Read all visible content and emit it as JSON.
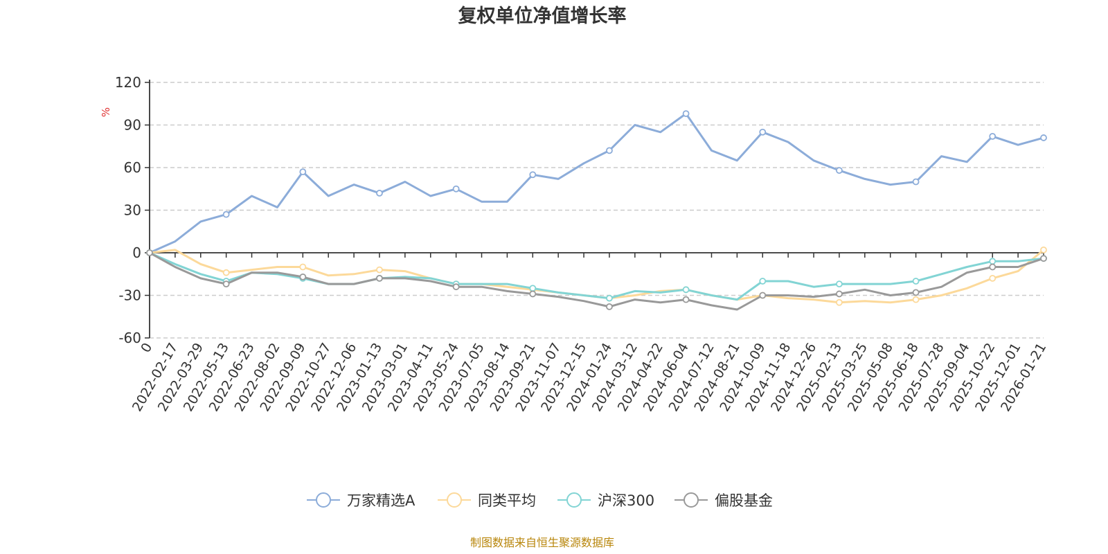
{
  "chart_data": {
    "type": "line",
    "title": "复权单位净值增长率",
    "ylabel": "%",
    "ylim": [
      -60,
      120
    ],
    "yticks": [
      120,
      90,
      60,
      30,
      0,
      -30,
      -60
    ],
    "yticks_labels": [
      "120",
      "90",
      "60",
      "30",
      "0",
      "-30",
      "-60"
    ],
    "grid": true,
    "legend_position": "bottom",
    "x_categories": [
      "0",
      "2022-02-17",
      "2022-03-29",
      "2022-05-13",
      "2022-06-23",
      "2022-08-02",
      "2022-09-09",
      "2022-10-27",
      "2022-12-06",
      "2023-01-13",
      "2023-03-01",
      "2023-04-11",
      "2023-05-24",
      "2023-07-05",
      "2023-08-14",
      "2023-09-21",
      "2023-11-07",
      "2023-12-15",
      "2024-01-24",
      "2024-03-12",
      "2024-04-22",
      "2024-06-04",
      "2024-07-12",
      "2024-08-21",
      "2024-10-09",
      "2024-11-18",
      "2024-12-26",
      "2025-02-13",
      "2025-03-25",
      "2025-05-08",
      "2025-06-18",
      "2025-07-28",
      "2025-09-04",
      "2025-10-22",
      "2025-12-01",
      "2026-01-21"
    ],
    "series": [
      {
        "name": "万家精选A",
        "color": "#8cacd9",
        "values": [
          0,
          8,
          22,
          27,
          40,
          32,
          57,
          40,
          48,
          42,
          50,
          40,
          45,
          36,
          36,
          55,
          52,
          63,
          72,
          90,
          85,
          98,
          72,
          65,
          85,
          78,
          65,
          58,
          52,
          48,
          50,
          68,
          64,
          82,
          76,
          81
        ]
      },
      {
        "name": "同类平均",
        "color": "#fcd99a",
        "values": [
          0,
          2,
          -8,
          -14,
          -12,
          -10,
          -10,
          -16,
          -15,
          -12,
          -13,
          -18,
          -22,
          -22,
          -24,
          -26,
          -28,
          -30,
          -32,
          -30,
          -27,
          -26,
          -30,
          -33,
          -30,
          -32,
          -33,
          -35,
          -34,
          -35,
          -33,
          -30,
          -25,
          -18,
          -13,
          2
        ]
      },
      {
        "name": "沪深300",
        "color": "#82d4d4",
        "values": [
          0,
          -8,
          -15,
          -20,
          -14,
          -15,
          -18,
          -22,
          -22,
          -18,
          -17,
          -18,
          -22,
          -22,
          -22,
          -25,
          -28,
          -30,
          -32,
          -27,
          -28,
          -26,
          -30,
          -33,
          -20,
          -20,
          -24,
          -22,
          -22,
          -22,
          -20,
          -15,
          -10,
          -6,
          -6,
          -4
        ]
      },
      {
        "name": "偏股基金",
        "color": "#999999",
        "values": [
          0,
          -10,
          -18,
          -22,
          -14,
          -14,
          -17,
          -22,
          -22,
          -18,
          -18,
          -20,
          -24,
          -24,
          -27,
          -29,
          -31,
          -34,
          -38,
          -33,
          -35,
          -33,
          -37,
          -40,
          -30,
          -30,
          -31,
          -29,
          -26,
          -30,
          -28,
          -24,
          -14,
          -10,
          -10,
          -4
        ]
      }
    ]
  },
  "footer": {
    "source": "制图数据来自恒生聚源数据库",
    "source_color": "#b8860b"
  },
  "colors": {
    "axis": "#333333",
    "grid": "#cccccc",
    "unit": "#e03030"
  }
}
